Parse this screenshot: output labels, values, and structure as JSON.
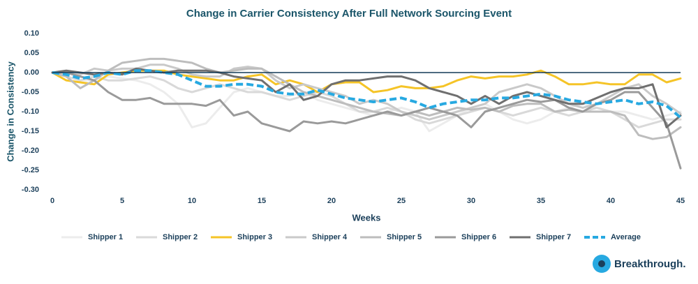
{
  "chart_data": {
    "type": "line",
    "title": "Change in Carrier Consistency After Full Network Sourcing Event",
    "x_label": "Weeks",
    "y_label": "Change in Consistency",
    "x": [
      0,
      1,
      2,
      3,
      4,
      5,
      6,
      7,
      8,
      9,
      10,
      11,
      12,
      13,
      14,
      15,
      16,
      17,
      18,
      19,
      20,
      21,
      22,
      23,
      24,
      25,
      26,
      27,
      28,
      29,
      30,
      31,
      32,
      33,
      34,
      35,
      36,
      37,
      38,
      39,
      40,
      41,
      42,
      43,
      44,
      45
    ],
    "xlim": [
      0,
      45
    ],
    "xticks": [
      0,
      5,
      10,
      15,
      20,
      25,
      30,
      35,
      40,
      45
    ],
    "ylim": [
      -0.3,
      0.1
    ],
    "yticks": [
      {
        "value": 0.1,
        "label": "0.10"
      },
      {
        "value": 0.05,
        "label": "0.05"
      },
      {
        "value": 0,
        "label": "0.00"
      },
      {
        "value": -0.05,
        "label": "-0.05"
      },
      {
        "value": -0.1,
        "label": "-0.10"
      },
      {
        "value": -0.15,
        "label": "-0.15"
      },
      {
        "value": -0.2,
        "label": "-0.20"
      },
      {
        "value": -0.25,
        "label": "-0.25"
      },
      {
        "value": -0.3,
        "label": "-0.30"
      }
    ],
    "grid": false,
    "legend": "bottom",
    "series": [
      {
        "name": "Shipper 1",
        "color": "#ececec",
        "values": [
          0,
          -0.01,
          -0.02,
          -0.02,
          -0.01,
          -0.015,
          -0.02,
          -0.03,
          -0.05,
          -0.08,
          -0.14,
          -0.13,
          -0.09,
          -0.05,
          -0.04,
          -0.05,
          -0.06,
          -0.06,
          -0.05,
          -0.07,
          -0.08,
          -0.09,
          -0.1,
          -0.11,
          -0.1,
          -0.09,
          -0.1,
          -0.15,
          -0.13,
          -0.11,
          -0.09,
          -0.08,
          -0.1,
          -0.12,
          -0.13,
          -0.12,
          -0.1,
          -0.09,
          -0.08,
          -0.09,
          -0.1,
          -0.1,
          -0.11,
          -0.12,
          -0.11,
          -0.1
        ]
      },
      {
        "name": "Shipper 2",
        "color": "#d9d9d9",
        "values": [
          0,
          -0.01,
          -0.02,
          -0.01,
          -0.02,
          -0.02,
          -0.015,
          -0.01,
          -0.02,
          -0.04,
          -0.05,
          -0.04,
          -0.03,
          -0.04,
          -0.05,
          -0.05,
          -0.06,
          -0.07,
          -0.06,
          -0.05,
          -0.06,
          -0.08,
          -0.1,
          -0.1,
          -0.09,
          -0.1,
          -0.12,
          -0.13,
          -0.12,
          -0.11,
          -0.1,
          -0.09,
          -0.1,
          -0.11,
          -0.1,
          -0.09,
          -0.1,
          -0.11,
          -0.1,
          -0.09,
          -0.1,
          -0.12,
          -0.14,
          -0.13,
          -0.12,
          -0.12
        ]
      },
      {
        "name": "Shipper 3",
        "color": "#f5c427",
        "values": [
          0,
          -0.02,
          -0.025,
          -0.03,
          -0.005,
          0,
          0.005,
          0.005,
          0.005,
          -0.005,
          -0.01,
          -0.015,
          -0.02,
          -0.02,
          -0.01,
          -0.005,
          -0.03,
          -0.02,
          -0.03,
          -0.05,
          -0.03,
          -0.025,
          -0.025,
          -0.05,
          -0.045,
          -0.035,
          -0.04,
          -0.04,
          -0.035,
          -0.02,
          -0.01,
          -0.015,
          -0.01,
          -0.01,
          -0.005,
          0.005,
          -0.01,
          -0.03,
          -0.03,
          -0.025,
          -0.03,
          -0.03,
          -0.005,
          -0.005,
          -0.025,
          -0.015
        ]
      },
      {
        "name": "Shipper 4",
        "color": "#c9c9c9",
        "values": [
          0,
          0,
          -0.005,
          0.01,
          0.005,
          0.01,
          0.01,
          0.02,
          0.02,
          0.01,
          -0.005,
          -0.01,
          -0.01,
          0.01,
          0.015,
          0.01,
          -0.02,
          -0.04,
          -0.03,
          -0.04,
          -0.05,
          -0.06,
          -0.08,
          -0.07,
          -0.08,
          -0.1,
          -0.11,
          -0.12,
          -0.11,
          -0.1,
          -0.09,
          -0.08,
          -0.05,
          -0.04,
          -0.03,
          -0.04,
          -0.06,
          -0.08,
          -0.09,
          -0.08,
          -0.06,
          -0.04,
          -0.03,
          -0.06,
          -0.08,
          -0.105
        ]
      },
      {
        "name": "Shipper 5",
        "color": "#bdbdbd",
        "values": [
          0,
          -0.01,
          -0.04,
          -0.02,
          0.005,
          0.025,
          0.03,
          0.035,
          0.035,
          0.03,
          0.025,
          0.01,
          0,
          0.005,
          0.01,
          0.01,
          -0.01,
          -0.03,
          -0.05,
          -0.06,
          -0.07,
          -0.08,
          -0.09,
          -0.1,
          -0.105,
          -0.11,
          -0.1,
          -0.11,
          -0.1,
          -0.09,
          -0.095,
          -0.09,
          -0.1,
          -0.085,
          -0.08,
          -0.08,
          -0.1,
          -0.095,
          -0.1,
          -0.1,
          -0.1,
          -0.11,
          -0.16,
          -0.17,
          -0.165,
          -0.14
        ]
      },
      {
        "name": "Shipper 6",
        "color": "#9a9a9a",
        "values": [
          0,
          0,
          -0.01,
          -0.02,
          -0.05,
          -0.07,
          -0.07,
          -0.065,
          -0.08,
          -0.08,
          -0.08,
          -0.085,
          -0.07,
          -0.11,
          -0.1,
          -0.13,
          -0.14,
          -0.15,
          -0.125,
          -0.13,
          -0.125,
          -0.13,
          -0.12,
          -0.11,
          -0.1,
          -0.11,
          -0.1,
          -0.09,
          -0.1,
          -0.11,
          -0.14,
          -0.1,
          -0.09,
          -0.08,
          -0.07,
          -0.075,
          -0.07,
          -0.09,
          -0.1,
          -0.08,
          -0.07,
          -0.05,
          -0.05,
          -0.09,
          -0.13,
          -0.245
        ]
      },
      {
        "name": "Shipper 7",
        "color": "#6f6f6f",
        "values": [
          0,
          0.005,
          0,
          -0.005,
          0,
          -0.005,
          0.01,
          0.005,
          0,
          0.005,
          0.005,
          0.005,
          0,
          -0.01,
          -0.015,
          -0.02,
          -0.05,
          -0.03,
          -0.07,
          -0.06,
          -0.03,
          -0.02,
          -0.02,
          -0.015,
          -0.01,
          -0.01,
          -0.02,
          -0.04,
          -0.05,
          -0.06,
          -0.08,
          -0.06,
          -0.08,
          -0.06,
          -0.05,
          -0.06,
          -0.07,
          -0.08,
          -0.08,
          -0.065,
          -0.05,
          -0.04,
          -0.04,
          -0.03,
          -0.14,
          -0.11
        ]
      },
      {
        "name": "Average",
        "color": "#27a9e1",
        "dashed": true,
        "values": [
          0,
          -0.005,
          -0.015,
          -0.01,
          0,
          -0.005,
          0.005,
          0.005,
          0,
          -0.005,
          -0.02,
          -0.035,
          -0.035,
          -0.03,
          -0.03,
          -0.035,
          -0.05,
          -0.055,
          -0.055,
          -0.045,
          -0.055,
          -0.065,
          -0.07,
          -0.075,
          -0.07,
          -0.065,
          -0.075,
          -0.09,
          -0.08,
          -0.075,
          -0.07,
          -0.07,
          -0.065,
          -0.065,
          -0.06,
          -0.055,
          -0.06,
          -0.07,
          -0.075,
          -0.08,
          -0.075,
          -0.07,
          -0.08,
          -0.075,
          -0.085,
          -0.115
        ]
      }
    ]
  },
  "logo": "Breakthrough."
}
